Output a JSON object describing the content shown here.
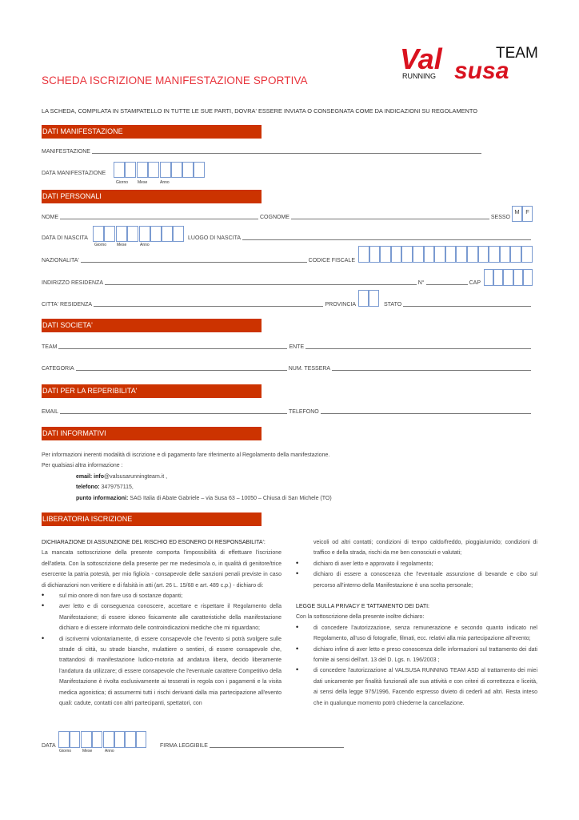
{
  "logo": {
    "text_main_1": "Val",
    "text_main_2": "susa",
    "text_team": "TEAM",
    "text_running": "RUNNING"
  },
  "title": "SCHEDA ISCRIZIONE MANIFESTAZIONE SPORTIVA",
  "intro": "LA SCHEDA, COMPILATA IN STAMPATELLO IN TUTTE LE SUE PARTI, DOVRA' ESSERE INVIATA O CONSEGNATA COME DA INDICAZIONI SU REGOLAMENTO",
  "sections": {
    "manifestazione": "DATI MANIFESTAZIONE",
    "personali": "DATI PERSONALI",
    "societa": "DATI SOCIETA'",
    "reperibilita": "DATI PER LA REPERIBILITA'",
    "informativi": "DATI  INFORMATIVI",
    "liberatoria": "LIBERATORIA ISCRIZIONE"
  },
  "date_labels": {
    "giorno": "Giorno",
    "mese": "Mese",
    "anno": "Anno"
  },
  "fields": {
    "manifestazione": "MANIFESTAZIONE",
    "data_manifestazione": "DATA MANIFESTAZIONE",
    "nome": "NOME",
    "cognome": "COGNOME",
    "sesso": "SESSO",
    "sesso_m": "M",
    "sesso_f": "F",
    "data_nascita": "DATA DI NASCITA",
    "luogo_nascita": "LUOGO DI NASCITA",
    "nazionalita": "NAZIONALITA'",
    "codice_fiscale": "CODICE FISCALE",
    "indirizzo": "INDIRIZZO RESIDENZA",
    "numero": "N°",
    "cap": "CAP",
    "citta": "CITTA' RESIDENZA",
    "provincia": "PROVINCIA",
    "stato": "STATO",
    "team": "TEAM",
    "ente": "ENTE",
    "categoria": "CATEGORIA",
    "tessera": "NUM. TESSERA",
    "email": "EMAIL",
    "telefono": "TELEFONO",
    "data": "DATA",
    "firma": "FIRMA LEGGIBILE"
  },
  "info": {
    "line1": "Per informazioni inerenti modalità di iscrizione e di pagamento fare riferimento al Regolamento della manifestazione.",
    "line2": "Per qualsiasi altra informazione :",
    "email_label": "email: info",
    "email_value": "@valsusarunningteam.it ,",
    "tel_label": "telefono:",
    "tel_value": " 3479757115,",
    "punto_label": "punto informazioni:",
    "punto_value": "  SAG Italia di Abate Gabriele – via Susa 63 – 10050 – Chiusa di San Michele (TO)"
  },
  "liberatoria": {
    "heading1": "DICHIARAZIONE DI ASSUNZIONE DEL RISCHIO ED ESONERO DI RESPONSABILITA':",
    "intro1": "La mancata sottoscrizione della presente comporta l'impossibilità di effettuare l'iscrizione dell'atleta. Con la sottoscrizione della presente per me medesimo/a o, in qualità di genitore/trice esercente la patria potestà, per mio figlio/a - consapevole delle sanzioni penali previste in caso di dichiarazioni non veritiere e di falsità in atti (art. 26 L. 15/68 e art. 489 c.p.) - dichiaro di:",
    "bullets1": [
      "sul mio onore di non fare uso di sostanze dopanti;",
      "aver letto e di conseguenza conoscere, accettare e rispettare il Regolamento della Manifestazione; di essere idoneo fisicamente alle caratteristiche della manifestazione dichiaro e di essere informato delle controindicazioni mediche che mi riguardano;",
      "di iscrivermi volontariamente, di essere consapevole che l'evento si potrà svolgere sulle strade di città, su strade bianche, mulattiere o sentieri, di essere consapevole che, trattandosi di manifestazione ludico-motoria ad andatura libera, decido liberamente l'andatura da utilizzare; di essere consapevole che l'eventuale carattere Competitivo della Manifestazione è rivolta esclusivamente ai tesserati in regola con i pagamenti e la visita medica agonistica; di assumermi tutti i rischi derivanti dalla mia partecipazione all'evento quali: cadute, contatti con altri partecipanti, spettatori, con",
      "veicoli od altri contatti; condizioni di tempo caldo/freddo, pioggia/umido; condizioni di traffico e della strada, rischi da me ben conosciuti e valutati;",
      "dichiaro di aver letto e approvato il regolamento;",
      "dichiaro di essere a conoscenza che l'eventuale assunzione di bevande e cibo sul percorso all'interno della Manifestazione è una scelta personale;"
    ],
    "heading2": "LEGGE SULLA PRIVACY E TATTAMENTO DEI DATI:",
    "intro2": "Con la sottoscrizione della presente inoltre dichiaro:",
    "bullets2": [
      "di concedere l'autorizzazione, senza remunerazione e secondo quanto indicato nel Regolamento, all'uso di fotografie, filmati, ecc. relativi alla mia partecipazione all'evento;",
      "dichiaro infine di aver letto e preso conoscenza delle informazioni sul trattamento dei dati fornite ai sensi dell'art. 13 del D. Lgs. n. 196/2003 ;",
      "di concedere l'autorizzazione al VALSUSA RUNNING TEAM ASD al trattamento dei miei dati unicamente per finalità funzionali alle sua attività e con criteri di correttezza e liceità, ai sensi della legge 975/1996, Facendo espresso divieto di cederli ad altri. Resta inteso che in qualunque momento potrò chiederne la cancellazione."
    ]
  },
  "colors": {
    "accent": "#cc3300",
    "title": "#e8333b",
    "box": "#7b9bd1",
    "logo_red": "#d9121f"
  }
}
